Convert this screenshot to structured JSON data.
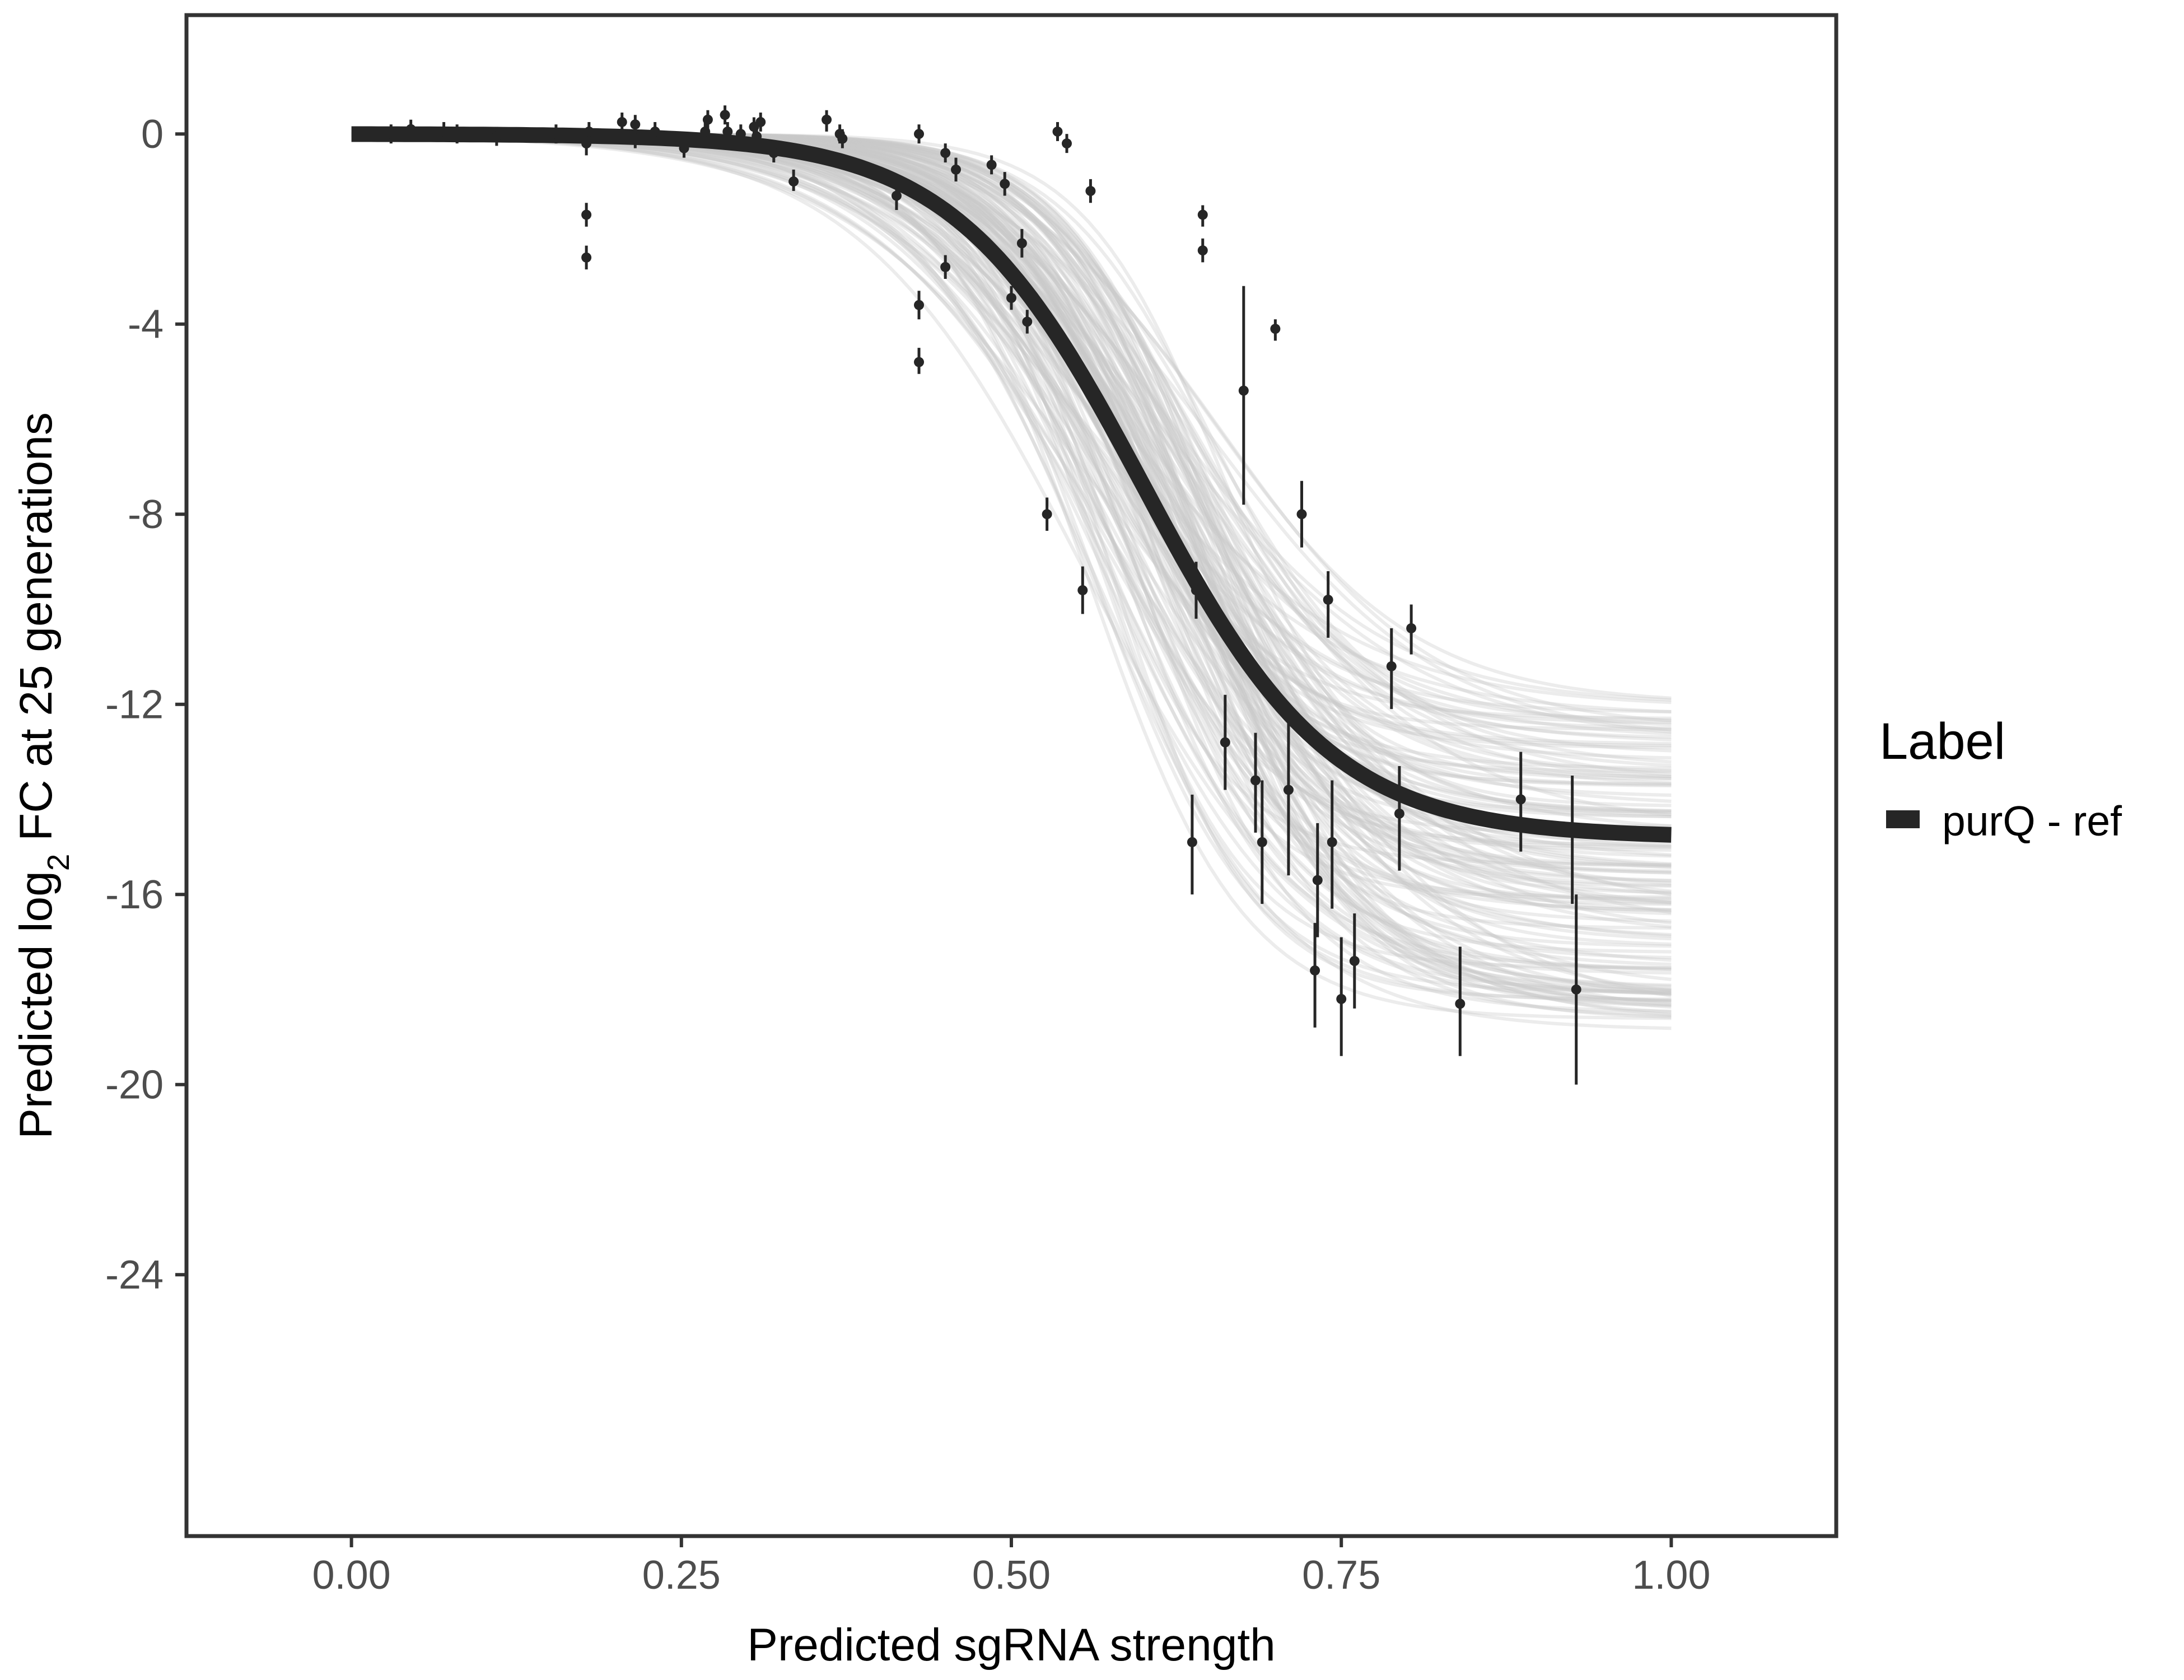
{
  "chart_data": {
    "type": "scatter",
    "xlabel": "Predicted sgRNA strength",
    "ylabel_parts": [
      "Predicted  log",
      "2",
      " FC at 25 generations"
    ],
    "xlim": [
      -0.125,
      1.125
    ],
    "ylim": [
      -29.5,
      2.5
    ],
    "x_ticks": [
      0.0,
      0.25,
      0.5,
      0.75,
      1.0
    ],
    "x_tick_labels": [
      "0.00",
      "0.25",
      "0.50",
      "0.75",
      "1.00"
    ],
    "y_ticks": [
      0,
      -4,
      -8,
      -12,
      -16,
      -20,
      -24
    ],
    "y_tick_labels": [
      "0",
      "-4",
      "-8",
      "-12",
      "-16",
      "-20",
      "-24"
    ],
    "grid": false,
    "legend": {
      "title": "Label",
      "position": "right",
      "items": [
        {
          "label": "purQ - ref",
          "color": "#262626"
        }
      ]
    },
    "fit_curve": {
      "name": "purQ - ref",
      "color": "#262626",
      "x_start": 0.0,
      "x_end": 1.0,
      "asymptote": -14.8,
      "midpoint": 0.6,
      "rate": 14.0
    },
    "posterior_draws": {
      "color": "#c8c8c8",
      "count": 140,
      "asymptote_range": [
        -12.0,
        -18.9
      ],
      "midpoint_range": [
        0.555,
        0.66
      ],
      "rate_range": [
        10.5,
        19.0
      ]
    },
    "points": [
      {
        "x": 0.03,
        "y": 0.0,
        "lo": -0.2,
        "hi": 0.2
      },
      {
        "x": 0.045,
        "y": 0.1,
        "lo": -0.1,
        "hi": 0.3
      },
      {
        "x": 0.07,
        "y": 0.05,
        "lo": -0.15,
        "hi": 0.25
      },
      {
        "x": 0.08,
        "y": 0.0,
        "lo": -0.2,
        "hi": 0.2
      },
      {
        "x": 0.11,
        "y": -0.05,
        "lo": -0.25,
        "hi": 0.15
      },
      {
        "x": 0.155,
        "y": 0.0,
        "lo": -0.2,
        "hi": 0.2
      },
      {
        "x": 0.178,
        "y": -0.2,
        "lo": -0.45,
        "hi": 0.1
      },
      {
        "x": 0.18,
        "y": 0.05,
        "lo": -0.15,
        "hi": 0.25
      },
      {
        "x": 0.178,
        "y": -1.7,
        "lo": -1.95,
        "hi": -1.45
      },
      {
        "x": 0.178,
        "y": -2.6,
        "lo": -2.85,
        "hi": -2.35
      },
      {
        "x": 0.205,
        "y": 0.25,
        "lo": 0.05,
        "hi": 0.45
      },
      {
        "x": 0.215,
        "y": 0.2,
        "lo": 0.0,
        "hi": 0.4
      },
      {
        "x": 0.215,
        "y": -0.1,
        "lo": -0.3,
        "hi": 0.1
      },
      {
        "x": 0.23,
        "y": 0.05,
        "lo": -0.15,
        "hi": 0.25
      },
      {
        "x": 0.252,
        "y": -0.3,
        "lo": -0.5,
        "hi": -0.1
      },
      {
        "x": 0.268,
        "y": 0.05,
        "lo": -0.15,
        "hi": 0.25
      },
      {
        "x": 0.27,
        "y": 0.3,
        "lo": 0.1,
        "hi": 0.5
      },
      {
        "x": 0.283,
        "y": 0.4,
        "lo": 0.2,
        "hi": 0.6
      },
      {
        "x": 0.285,
        "y": 0.05,
        "lo": -0.15,
        "hi": 0.25
      },
      {
        "x": 0.295,
        "y": 0.0,
        "lo": -0.2,
        "hi": 0.2
      },
      {
        "x": 0.305,
        "y": 0.15,
        "lo": -0.05,
        "hi": 0.35
      },
      {
        "x": 0.307,
        "y": -0.05,
        "lo": -0.25,
        "hi": 0.15
      },
      {
        "x": 0.31,
        "y": 0.25,
        "lo": 0.05,
        "hi": 0.45
      },
      {
        "x": 0.32,
        "y": -0.4,
        "lo": -0.6,
        "hi": -0.2
      },
      {
        "x": 0.335,
        "y": -1.0,
        "lo": -1.2,
        "hi": -0.75
      },
      {
        "x": 0.36,
        "y": 0.3,
        "lo": 0.05,
        "hi": 0.5
      },
      {
        "x": 0.37,
        "y": 0.0,
        "lo": -0.2,
        "hi": 0.2
      },
      {
        "x": 0.372,
        "y": -0.1,
        "lo": -0.3,
        "hi": 0.1
      },
      {
        "x": 0.413,
        "y": -1.3,
        "lo": -1.6,
        "hi": -1.0
      },
      {
        "x": 0.43,
        "y": 0.0,
        "lo": -0.2,
        "hi": 0.2
      },
      {
        "x": 0.43,
        "y": -3.6,
        "lo": -3.9,
        "hi": -3.3
      },
      {
        "x": 0.43,
        "y": -4.8,
        "lo": -5.05,
        "hi": -4.5
      },
      {
        "x": 0.45,
        "y": -0.4,
        "lo": -0.6,
        "hi": -0.2
      },
      {
        "x": 0.45,
        "y": -2.8,
        "lo": -3.05,
        "hi": -2.55
      },
      {
        "x": 0.458,
        "y": -0.75,
        "lo": -1.0,
        "hi": -0.5
      },
      {
        "x": 0.485,
        "y": -0.65,
        "lo": -0.85,
        "hi": -0.45
      },
      {
        "x": 0.495,
        "y": -1.05,
        "lo": -1.3,
        "hi": -0.8
      },
      {
        "x": 0.5,
        "y": -3.45,
        "lo": -3.7,
        "hi": -3.2
      },
      {
        "x": 0.508,
        "y": -2.3,
        "lo": -2.6,
        "hi": -2.0
      },
      {
        "x": 0.512,
        "y": -3.95,
        "lo": -4.2,
        "hi": -3.7
      },
      {
        "x": 0.527,
        "y": -8.0,
        "lo": -8.35,
        "hi": -7.65
      },
      {
        "x": 0.535,
        "y": 0.05,
        "lo": -0.15,
        "hi": 0.25
      },
      {
        "x": 0.542,
        "y": -0.2,
        "lo": -0.4,
        "hi": 0.0
      },
      {
        "x": 0.554,
        "y": -9.6,
        "lo": -10.1,
        "hi": -9.1
      },
      {
        "x": 0.56,
        "y": -1.2,
        "lo": -1.45,
        "hi": -0.95
      },
      {
        "x": 0.637,
        "y": -14.9,
        "lo": -16.0,
        "hi": -13.9
      },
      {
        "x": 0.64,
        "y": -9.6,
        "lo": -10.2,
        "hi": -9.0
      },
      {
        "x": 0.645,
        "y": -1.7,
        "lo": -1.95,
        "hi": -1.5
      },
      {
        "x": 0.645,
        "y": -2.45,
        "lo": -2.7,
        "hi": -2.2
      },
      {
        "x": 0.662,
        "y": -12.8,
        "lo": -13.8,
        "hi": -11.8
      },
      {
        "x": 0.676,
        "y": -5.4,
        "lo": -7.8,
        "hi": -3.2
      },
      {
        "x": 0.685,
        "y": -13.6,
        "lo": -14.7,
        "hi": -12.6
      },
      {
        "x": 0.69,
        "y": -14.9,
        "lo": -16.2,
        "hi": -13.6
      },
      {
        "x": 0.7,
        "y": -4.1,
        "lo": -4.35,
        "hi": -3.9
      },
      {
        "x": 0.71,
        "y": -13.8,
        "lo": -15.6,
        "hi": -12.0
      },
      {
        "x": 0.72,
        "y": -8.0,
        "lo": -8.7,
        "hi": -7.3
      },
      {
        "x": 0.73,
        "y": -17.6,
        "lo": -18.8,
        "hi": -16.6
      },
      {
        "x": 0.732,
        "y": -15.7,
        "lo": -16.9,
        "hi": -14.5
      },
      {
        "x": 0.74,
        "y": -9.8,
        "lo": -10.6,
        "hi": -9.2
      },
      {
        "x": 0.743,
        "y": -14.9,
        "lo": -16.3,
        "hi": -13.6
      },
      {
        "x": 0.75,
        "y": -18.2,
        "lo": -19.4,
        "hi": -16.9
      },
      {
        "x": 0.76,
        "y": -17.4,
        "lo": -18.4,
        "hi": -16.4
      },
      {
        "x": 0.788,
        "y": -11.2,
        "lo": -12.1,
        "hi": -10.4
      },
      {
        "x": 0.794,
        "y": -14.3,
        "lo": -15.5,
        "hi": -13.3
      },
      {
        "x": 0.803,
        "y": -10.4,
        "lo": -10.95,
        "hi": -9.9
      },
      {
        "x": 0.84,
        "y": -18.3,
        "lo": -19.4,
        "hi": -17.1
      },
      {
        "x": 0.886,
        "y": -14.0,
        "lo": -15.1,
        "hi": -13.0
      },
      {
        "x": 0.925,
        "y": -14.7,
        "lo": -16.2,
        "hi": -13.5
      },
      {
        "x": 0.928,
        "y": -18.0,
        "lo": -20.0,
        "hi": -16.0
      }
    ]
  }
}
